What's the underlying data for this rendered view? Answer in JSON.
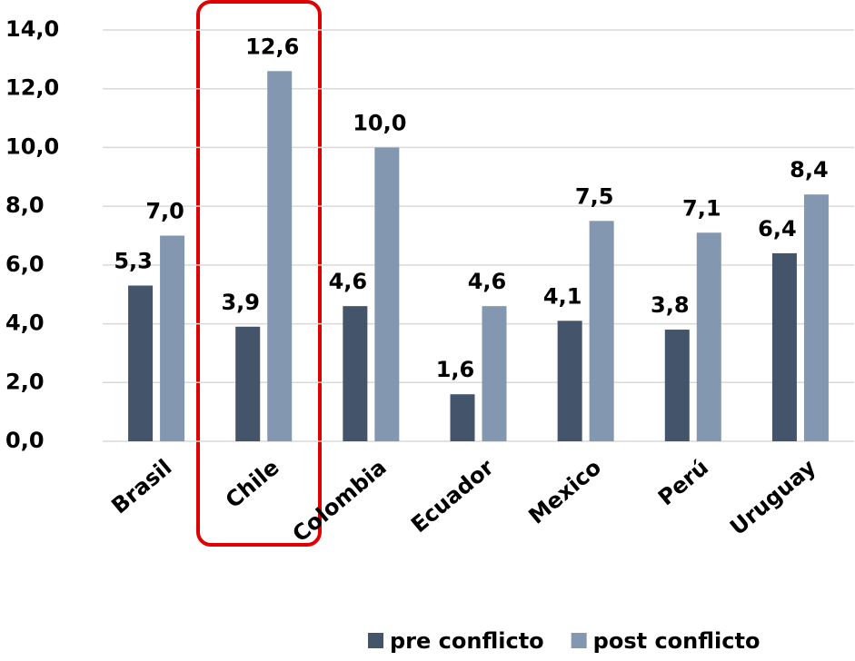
{
  "chart_data": {
    "type": "bar",
    "categories": [
      "Brasil",
      "Chile",
      "Colombia",
      "Ecuador",
      "Mexico",
      "Perú",
      "Uruguay"
    ],
    "series": [
      {
        "name": "pre conflicto",
        "color": "#44546a",
        "values": [
          5.3,
          3.9,
          4.6,
          1.6,
          4.1,
          3.8,
          6.4
        ],
        "value_labels": [
          "5,3",
          "3,9",
          "4,6",
          "1,6",
          "4,1",
          "3,8",
          "6,4"
        ]
      },
      {
        "name": "post conflicto",
        "color": "#8497b0",
        "values": [
          7.0,
          12.6,
          10.0,
          4.6,
          7.5,
          7.1,
          8.4
        ],
        "value_labels": [
          "7,0",
          "12,6",
          "10,0",
          "4,6",
          "7,5",
          "7,1",
          "8,4"
        ]
      }
    ],
    "ylim": [
      0,
      14
    ],
    "yticks": [
      {
        "value": 0,
        "label": "0,0"
      },
      {
        "value": 2,
        "label": "2,0"
      },
      {
        "value": 4,
        "label": "4,0"
      },
      {
        "value": 6,
        "label": "6,0"
      },
      {
        "value": 8,
        "label": "8,0"
      },
      {
        "value": 10,
        "label": "10,0"
      },
      {
        "value": 12,
        "label": "12,0"
      },
      {
        "value": 14,
        "label": "14,0"
      }
    ],
    "grid": true,
    "legend": "bottom"
  }
}
